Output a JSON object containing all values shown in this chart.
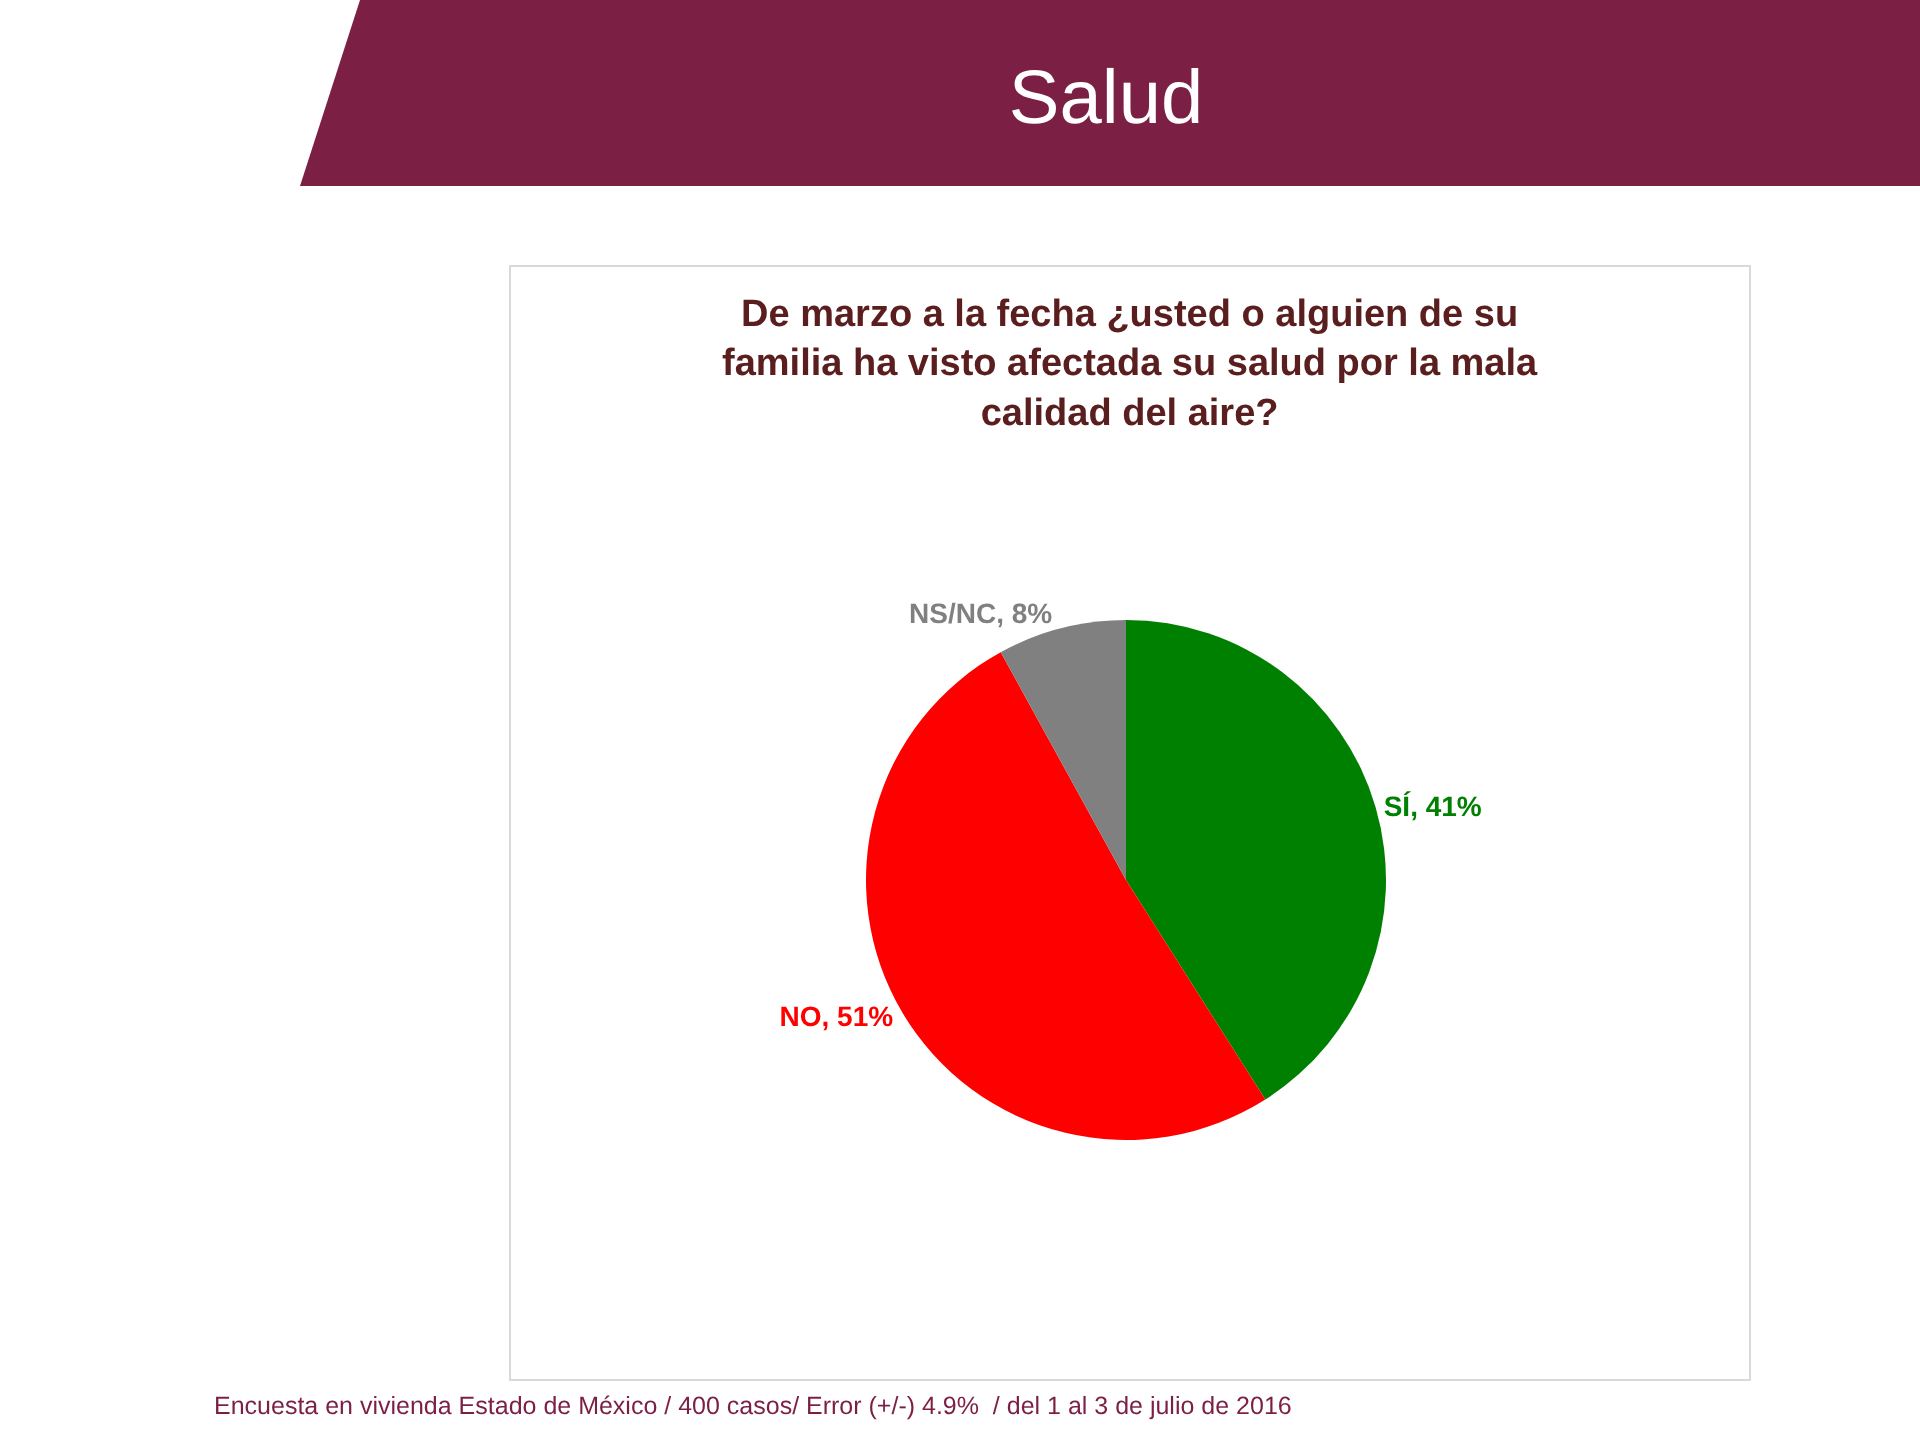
{
  "chart_data": {
    "type": "pie",
    "title": "Salud",
    "subtitle": "De marzo a la fecha ¿usted o alguien de su familia ha visto afectada su salud por la mala calidad del aire?",
    "categories": [
      "SÍ",
      "NO",
      "NS/NC"
    ],
    "values": [
      41,
      51,
      8
    ],
    "colors": [
      "#008000",
      "#ff0000",
      "#808080"
    ],
    "value_labels": [
      "41%",
      "51%",
      "8%"
    ],
    "annotations": [
      "Encuesta en vivienda Estado de México / 400 casos/ Error (+/-) 4.9%  / del 1 al 3 de julio de 2016"
    ]
  }
}
